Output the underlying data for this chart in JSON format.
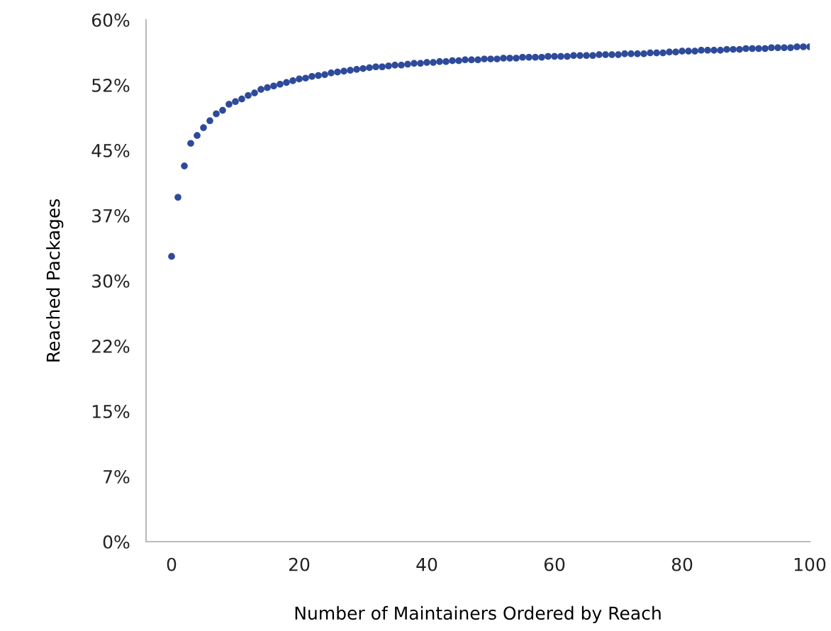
{
  "chart_data": {
    "type": "scatter",
    "xlabel": "Number of Maintainers Ordered by Reach",
    "ylabel": "Reached Packages",
    "x": [
      0,
      1,
      2,
      3,
      4,
      5,
      6,
      7,
      8,
      9,
      10,
      11,
      12,
      13,
      14,
      15,
      16,
      17,
      18,
      19,
      20,
      21,
      22,
      23,
      24,
      25,
      26,
      27,
      28,
      29,
      30,
      31,
      32,
      33,
      34,
      35,
      36,
      37,
      38,
      39,
      40,
      41,
      42,
      43,
      44,
      45,
      46,
      47,
      48,
      49,
      50,
      51,
      52,
      53,
      54,
      55,
      56,
      57,
      58,
      59,
      60,
      61,
      62,
      63,
      64,
      65,
      66,
      67,
      68,
      69,
      70,
      71,
      72,
      73,
      74,
      75,
      76,
      77,
      78,
      79,
      80,
      81,
      82,
      83,
      84,
      85,
      86,
      87,
      88,
      89,
      90,
      91,
      92,
      93,
      94,
      95,
      96,
      97,
      98,
      99,
      100
    ],
    "series": [
      {
        "color": "#2e4a9a",
        "values": [
          32.8,
          39.6,
          43.2,
          45.8,
          46.7,
          47.6,
          48.4,
          49.2,
          49.6,
          50.3,
          50.6,
          50.9,
          51.3,
          51.6,
          52.0,
          52.2,
          52.4,
          52.6,
          52.8,
          53.0,
          53.2,
          53.3,
          53.5,
          53.6,
          53.7,
          53.9,
          54.0,
          54.1,
          54.2,
          54.3,
          54.4,
          54.5,
          54.6,
          54.6,
          54.7,
          54.8,
          54.8,
          54.9,
          55.0,
          55.0,
          55.1,
          55.1,
          55.2,
          55.2,
          55.3,
          55.3,
          55.4,
          55.4,
          55.4,
          55.5,
          55.5,
          55.5,
          55.6,
          55.6,
          55.6,
          55.7,
          55.7,
          55.7,
          55.7,
          55.8,
          55.8,
          55.8,
          55.8,
          55.9,
          55.9,
          55.9,
          55.9,
          56.0,
          56.0,
          56.0,
          56.0,
          56.1,
          56.1,
          56.1,
          56.1,
          56.2,
          56.2,
          56.2,
          56.3,
          56.3,
          56.4,
          56.4,
          56.4,
          56.5,
          56.5,
          56.5,
          56.5,
          56.6,
          56.6,
          56.6,
          56.7,
          56.7,
          56.7,
          56.7,
          56.8,
          56.8,
          56.8,
          56.8,
          56.9,
          56.9,
          56.9
        ]
      }
    ],
    "xlim": [
      -4,
      100
    ],
    "xticks": [
      0,
      20,
      40,
      60,
      80,
      100
    ],
    "ylim": [
      0,
      60
    ],
    "yticks": [
      {
        "value": 0,
        "label": "0%"
      },
      {
        "value": 7.5,
        "label": "7%"
      },
      {
        "value": 15,
        "label": "15%"
      },
      {
        "value": 22.5,
        "label": "22%"
      },
      {
        "value": 30,
        "label": "30%"
      },
      {
        "value": 37.5,
        "label": "37%"
      },
      {
        "value": 45,
        "label": "45%"
      },
      {
        "value": 52.5,
        "label": "52%"
      },
      {
        "value": 60,
        "label": "60%"
      }
    ],
    "marker": "circle",
    "grid": false
  }
}
